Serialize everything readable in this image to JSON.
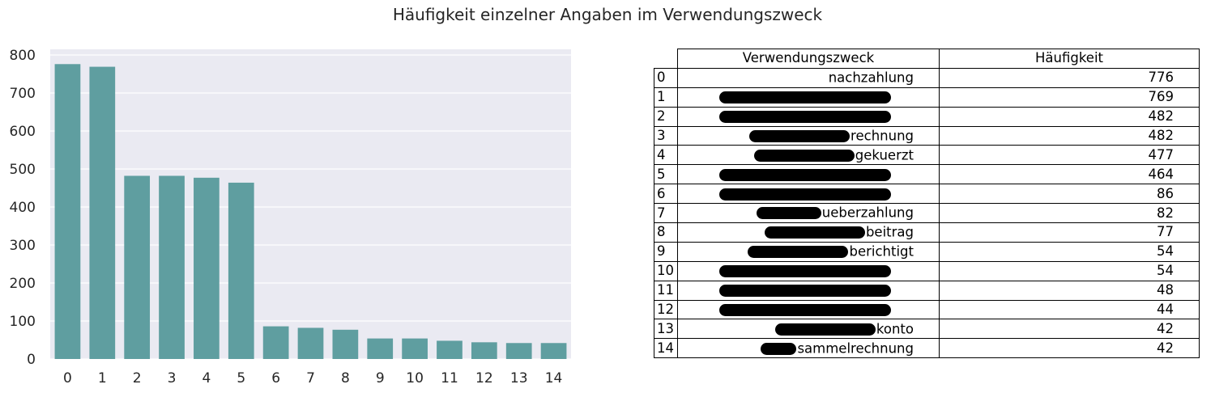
{
  "title": "Häufigkeit einzelner Angaben im Verwendungszweck",
  "colors": {
    "bar": "#5f9ea0",
    "plot_bg": "#eaeaf2",
    "grid": "#ffffff"
  },
  "chart_data": {
    "type": "bar",
    "categories": [
      "0",
      "1",
      "2",
      "3",
      "4",
      "5",
      "6",
      "7",
      "8",
      "9",
      "10",
      "11",
      "12",
      "13",
      "14"
    ],
    "values": [
      776,
      769,
      482,
      482,
      477,
      464,
      86,
      82,
      77,
      54,
      54,
      48,
      44,
      42,
      42
    ],
    "ylim": [
      0,
      800
    ],
    "yticks": [
      0,
      100,
      200,
      300,
      400,
      500,
      600,
      700,
      800
    ],
    "grid": true,
    "xlabel": "",
    "ylabel": ""
  },
  "table": {
    "columns": [
      "Verwendungszweck",
      "Häufigkeit"
    ],
    "rows": [
      {
        "index": "0",
        "purpose": "nachzahlung",
        "redacted": "none",
        "count": "776"
      },
      {
        "index": "1",
        "purpose": "",
        "redacted": "full",
        "count": "769"
      },
      {
        "index": "2",
        "purpose": "",
        "redacted": "full",
        "count": "482"
      },
      {
        "index": "3",
        "purpose": "rechnung",
        "redacted": "long",
        "count": "482"
      },
      {
        "index": "4",
        "purpose": "gekuerzt",
        "redacted": "long",
        "count": "477"
      },
      {
        "index": "5",
        "purpose": "",
        "redacted": "full",
        "count": "464"
      },
      {
        "index": "6",
        "purpose": "",
        "redacted": "full",
        "count": "86"
      },
      {
        "index": "7",
        "purpose": "ueberzahlung",
        "redacted": "medium",
        "count": "82"
      },
      {
        "index": "8",
        "purpose": "beitrag",
        "redacted": "long",
        "count": "77"
      },
      {
        "index": "9",
        "purpose": "berichtigt",
        "redacted": "long",
        "count": "54"
      },
      {
        "index": "10",
        "purpose": "",
        "redacted": "full",
        "count": "54"
      },
      {
        "index": "11",
        "purpose": "",
        "redacted": "full",
        "count": "48"
      },
      {
        "index": "12",
        "purpose": "",
        "redacted": "full",
        "count": "44"
      },
      {
        "index": "13",
        "purpose": "konto",
        "redacted": "long",
        "count": "42"
      },
      {
        "index": "14",
        "purpose": "sammelrechnung",
        "redacted": "short",
        "count": "42"
      }
    ]
  }
}
